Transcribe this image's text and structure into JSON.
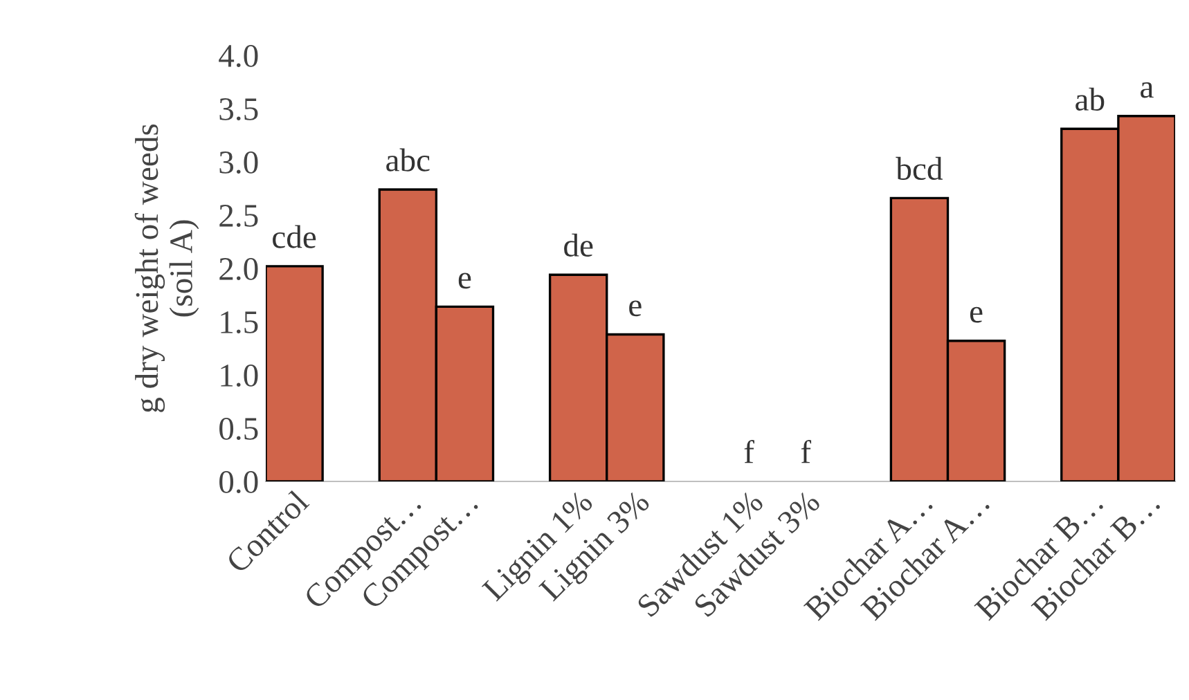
{
  "chart_data": {
    "type": "bar",
    "ylabel": "g dry weight of weeds\n(soil A)",
    "categories": [
      "Control",
      null,
      "Compost…",
      "Compost…",
      null,
      "Lignin 1%",
      "Lignin 3%",
      null,
      "Sawdust 1%",
      "Sawdust 3%",
      null,
      "Biochar A…",
      "Biochar A…",
      null,
      "Biochar B…",
      "Biochar B…"
    ],
    "values": [
      2.02,
      null,
      2.74,
      1.64,
      null,
      1.94,
      1.38,
      null,
      0,
      0,
      null,
      2.66,
      1.32,
      null,
      3.31,
      3.43
    ],
    "value_labels": [
      "cde",
      null,
      "abc",
      "e",
      null,
      "de",
      "e",
      null,
      "f",
      "f",
      null,
      "bcd",
      "e",
      null,
      "ab",
      "a"
    ],
    "color": "#d0644a",
    "ylim": [
      0,
      4
    ],
    "yticks": [
      {
        "value": 0,
        "label": "0.0"
      },
      {
        "value": 0.5,
        "label": "0.5"
      },
      {
        "value": 1,
        "label": "1.0"
      },
      {
        "value": 1.5,
        "label": "1.5"
      },
      {
        "value": 2,
        "label": "2.0"
      },
      {
        "value": 2.5,
        "label": "2.5"
      },
      {
        "value": 3,
        "label": "3.0"
      },
      {
        "value": 3.5,
        "label": "3.5"
      },
      {
        "value": 4,
        "label": "4.0"
      }
    ],
    "grid": false
  }
}
